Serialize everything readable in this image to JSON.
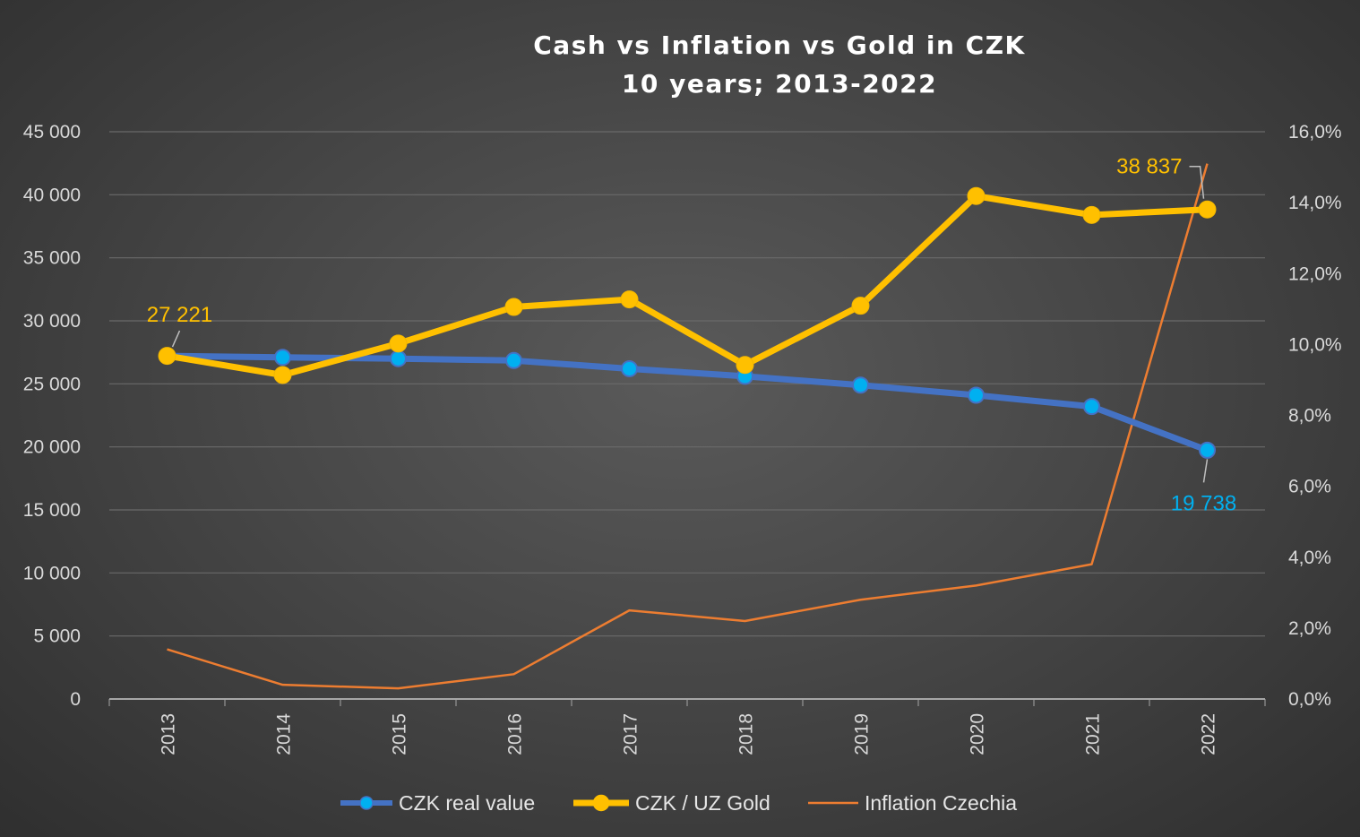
{
  "chart_data": {
    "type": "line",
    "title": "Cash vs Inflation vs Gold in CZK",
    "subtitle": "10 years; 2013-2022",
    "categories": [
      "2013",
      "2014",
      "2015",
      "2016",
      "2017",
      "2018",
      "2019",
      "2020",
      "2021",
      "2022"
    ],
    "y_left": {
      "min": 0,
      "max": 45000,
      "step": 5000,
      "ticks": [
        "0",
        "5 000",
        "10 000",
        "15 000",
        "20 000",
        "25 000",
        "30 000",
        "35 000",
        "40 000",
        "45 000"
      ]
    },
    "y_right": {
      "min": 0,
      "max": 0.16,
      "step": 0.02,
      "ticks": [
        "0,0%",
        "2,0%",
        "4,0%",
        "6,0%",
        "8,0%",
        "10,0%",
        "12,0%",
        "14,0%",
        "16,0%"
      ]
    },
    "grid": true,
    "legend_position": "bottom",
    "series": [
      {
        "name": "CZK real value",
        "axis": "left",
        "color": "#4472C4",
        "marker_color": "#00B0F0",
        "values": [
          27221,
          27100,
          27000,
          26850,
          26200,
          25600,
          24900,
          24100,
          23200,
          19738
        ]
      },
      {
        "name": "CZK / UZ Gold",
        "axis": "left",
        "color": "#FFC000",
        "marker_color": "#FFC000",
        "values": [
          27221,
          25700,
          28200,
          31100,
          31700,
          26500,
          31200,
          39900,
          38400,
          38837
        ]
      },
      {
        "name": "Inflation Czechia",
        "axis": "right",
        "color": "#ED7D31",
        "values": [
          0.014,
          0.004,
          0.003,
          0.007,
          0.025,
          0.022,
          0.028,
          0.032,
          0.038,
          0.151
        ]
      }
    ],
    "data_labels": [
      {
        "text": "27 221",
        "color": "#FFC000"
      },
      {
        "text": "38 837",
        "color": "#FFC000"
      },
      {
        "text": "19 738",
        "color": "#00B0F0"
      }
    ]
  }
}
